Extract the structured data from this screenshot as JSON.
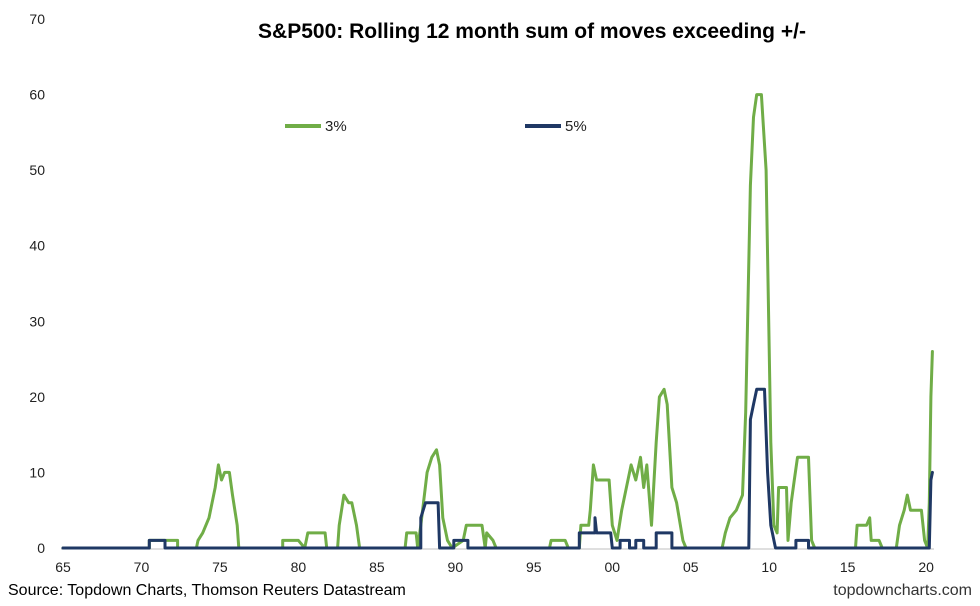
{
  "chart_data": {
    "type": "line",
    "title": "S&P500: Rolling 12 month sum of moves exceeding +/-",
    "xlabel": "",
    "ylabel": "",
    "xlim": [
      1965,
      2020.5
    ],
    "ylim": [
      0,
      70
    ],
    "x_ticks": [
      1965,
      1970,
      1975,
      1980,
      1985,
      1990,
      1995,
      2000,
      2005,
      2010,
      2015,
      2020
    ],
    "x_tick_labels": [
      "65",
      "70",
      "75",
      "80",
      "85",
      "90",
      "95",
      "00",
      "05",
      "10",
      "15",
      "20"
    ],
    "y_ticks": [
      0,
      10,
      20,
      30,
      40,
      50,
      60,
      70
    ],
    "y_tick_labels": [
      "0",
      "10",
      "20",
      "30",
      "40",
      "50",
      "60",
      "70"
    ],
    "grid": false,
    "legend_position": "top",
    "series": [
      {
        "name": "3%",
        "color": "#70ad47",
        "points": [
          [
            1965.0,
            0
          ],
          [
            1970.5,
            0
          ],
          [
            1970.5,
            1
          ],
          [
            1972.3,
            1
          ],
          [
            1972.3,
            0
          ],
          [
            1973.5,
            0
          ],
          [
            1973.6,
            1
          ],
          [
            1973.9,
            2
          ],
          [
            1974.3,
            4
          ],
          [
            1974.7,
            8
          ],
          [
            1974.9,
            11
          ],
          [
            1975.1,
            9
          ],
          [
            1975.3,
            10
          ],
          [
            1975.6,
            10
          ],
          [
            1975.8,
            7
          ],
          [
            1976.1,
            3
          ],
          [
            1976.2,
            0
          ],
          [
            1979.0,
            0
          ],
          [
            1979.0,
            1
          ],
          [
            1980.0,
            1
          ],
          [
            1980.4,
            0
          ],
          [
            1980.6,
            2
          ],
          [
            1981.7,
            2
          ],
          [
            1981.8,
            0
          ],
          [
            1982.5,
            0
          ],
          [
            1982.6,
            3
          ],
          [
            1982.9,
            7
          ],
          [
            1983.2,
            6
          ],
          [
            1983.4,
            6
          ],
          [
            1983.7,
            3
          ],
          [
            1983.9,
            0
          ],
          [
            1986.8,
            0
          ],
          [
            1986.9,
            2
          ],
          [
            1987.5,
            2
          ],
          [
            1987.6,
            0
          ],
          [
            1987.8,
            3
          ],
          [
            1988.2,
            10
          ],
          [
            1988.5,
            12
          ],
          [
            1988.8,
            13
          ],
          [
            1989.0,
            11
          ],
          [
            1989.2,
            4
          ],
          [
            1989.5,
            1
          ],
          [
            1989.8,
            0
          ],
          [
            1990.5,
            1
          ],
          [
            1990.7,
            3
          ],
          [
            1991.7,
            3
          ],
          [
            1991.9,
            0
          ],
          [
            1992.0,
            2
          ],
          [
            1992.4,
            1
          ],
          [
            1992.6,
            0
          ],
          [
            1996.0,
            0
          ],
          [
            1996.1,
            1
          ],
          [
            1997.0,
            1
          ],
          [
            1997.2,
            0
          ],
          [
            1997.9,
            0
          ],
          [
            1998.0,
            3
          ],
          [
            1998.5,
            3
          ],
          [
            1998.6,
            5
          ],
          [
            1998.8,
            11
          ],
          [
            1999.0,
            9
          ],
          [
            1999.8,
            9
          ],
          [
            2000.0,
            3
          ],
          [
            2000.3,
            1
          ],
          [
            2000.6,
            5
          ],
          [
            2000.9,
            8
          ],
          [
            2001.2,
            11
          ],
          [
            2001.5,
            9
          ],
          [
            2001.8,
            12
          ],
          [
            2002.0,
            8
          ],
          [
            2002.2,
            11
          ],
          [
            2002.5,
            3
          ],
          [
            2002.8,
            14
          ],
          [
            2003.0,
            20
          ],
          [
            2003.3,
            21
          ],
          [
            2003.5,
            19
          ],
          [
            2003.8,
            8
          ],
          [
            2004.1,
            6
          ],
          [
            2004.5,
            1
          ],
          [
            2004.7,
            0
          ],
          [
            2007.0,
            0
          ],
          [
            2007.2,
            2
          ],
          [
            2007.5,
            4
          ],
          [
            2007.9,
            5
          ],
          [
            2008.3,
            7
          ],
          [
            2008.5,
            18
          ],
          [
            2008.8,
            48
          ],
          [
            2009.0,
            57
          ],
          [
            2009.2,
            60
          ],
          [
            2009.5,
            60
          ],
          [
            2009.8,
            50
          ],
          [
            2010.1,
            14
          ],
          [
            2010.3,
            3
          ],
          [
            2010.5,
            2
          ],
          [
            2010.6,
            8
          ],
          [
            2011.1,
            8
          ],
          [
            2011.2,
            1
          ],
          [
            2011.4,
            6
          ],
          [
            2011.6,
            9
          ],
          [
            2011.8,
            12
          ],
          [
            2012.5,
            12
          ],
          [
            2012.7,
            1
          ],
          [
            2012.9,
            0
          ],
          [
            2015.5,
            0
          ],
          [
            2015.6,
            3
          ],
          [
            2016.2,
            3
          ],
          [
            2016.4,
            4
          ],
          [
            2016.5,
            1
          ],
          [
            2017.0,
            1
          ],
          [
            2017.2,
            0
          ],
          [
            2018.1,
            0
          ],
          [
            2018.3,
            3
          ],
          [
            2018.6,
            5
          ],
          [
            2018.8,
            7
          ],
          [
            2019.0,
            5
          ],
          [
            2019.7,
            5
          ],
          [
            2019.9,
            1
          ],
          [
            2020.1,
            0
          ],
          [
            2020.2,
            6
          ],
          [
            2020.3,
            20
          ],
          [
            2020.4,
            26
          ]
        ]
      },
      {
        "name": "5%",
        "color": "#1f3864",
        "points": [
          [
            1965.0,
            0
          ],
          [
            1970.5,
            0
          ],
          [
            1970.5,
            1
          ],
          [
            1971.5,
            1
          ],
          [
            1971.5,
            0
          ],
          [
            1987.8,
            0
          ],
          [
            1987.8,
            4
          ],
          [
            1988.1,
            6
          ],
          [
            1988.9,
            6
          ],
          [
            1989.0,
            0
          ],
          [
            1989.9,
            0
          ],
          [
            1989.9,
            1
          ],
          [
            1990.8,
            1
          ],
          [
            1990.8,
            0
          ],
          [
            1997.9,
            0
          ],
          [
            1997.9,
            2
          ],
          [
            1998.9,
            2
          ],
          [
            1998.9,
            4
          ],
          [
            1999.0,
            2
          ],
          [
            1999.9,
            2
          ],
          [
            2000.0,
            0
          ],
          [
            2000.5,
            0
          ],
          [
            2000.5,
            1
          ],
          [
            2001.1,
            1
          ],
          [
            2001.1,
            0
          ],
          [
            2001.5,
            0
          ],
          [
            2001.5,
            1
          ],
          [
            2002.0,
            1
          ],
          [
            2002.0,
            0
          ],
          [
            2002.8,
            0
          ],
          [
            2002.8,
            2
          ],
          [
            2003.8,
            2
          ],
          [
            2003.8,
            0
          ],
          [
            2008.7,
            0
          ],
          [
            2008.8,
            17
          ],
          [
            2009.0,
            19
          ],
          [
            2009.2,
            21
          ],
          [
            2009.7,
            21
          ],
          [
            2009.9,
            10
          ],
          [
            2010.1,
            3
          ],
          [
            2010.4,
            0
          ],
          [
            2011.7,
            0
          ],
          [
            2011.7,
            1
          ],
          [
            2012.5,
            1
          ],
          [
            2012.5,
            0
          ],
          [
            2020.2,
            0
          ],
          [
            2020.3,
            9
          ],
          [
            2020.4,
            10
          ]
        ]
      }
    ]
  },
  "footer": {
    "source": "Source: Topdown Charts, Thomson Reuters Datastream",
    "brand": "topdowncharts.com"
  }
}
